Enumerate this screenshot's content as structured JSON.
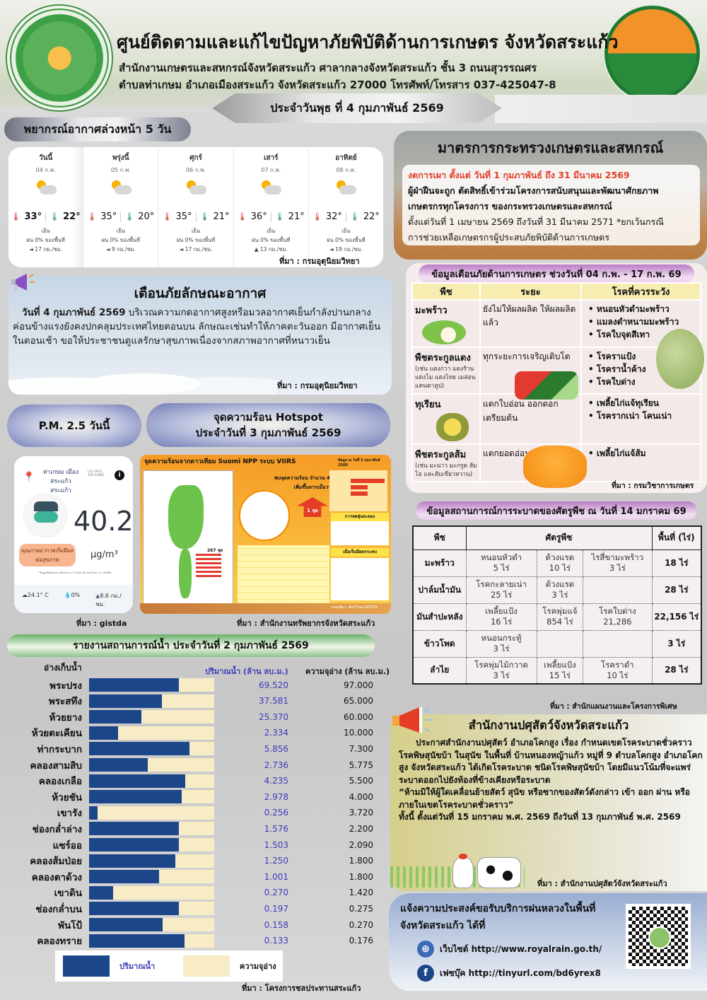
{
  "header": {
    "title": "ศูนย์ติดตามและแก้ไขปัญหาภัยพิบัติด้านการเกษตร จังหวัดสระแก้ว",
    "address_line1": "สำนักงานเกษตรและสหกรณ์จังหวัดสระแก้ว ศาลากลางจังหวัดสระแก้ว ชั้น 3 ถนนสุวรรณศร",
    "address_line2": "ตำบลท่าเกษม อำเภอเมืองสระแก้ว จังหวัดสระแก้ว 27000 โทรศัพท์/โทรสาร 037-425047-8",
    "date": "ประจำวันพุธ ที่ 4 กุมภาพันธ์ 2569",
    "logo_left_text": "กระทรวงเกษตรและสหกรณ์ · MINISTRY OF AGRICULTURE AND COOPERATIVES"
  },
  "forecast": {
    "title": "พยากรณ์อากาศล่วงหน้า 5 วัน",
    "days": [
      {
        "name": "วันนี้",
        "date": "04 ก.พ.",
        "high": "33°",
        "low": "22°",
        "cond": "เย็น",
        "rain": "ฝน 0% ของพื้นที่",
        "wind": "◄ 17 กม./ชม."
      },
      {
        "name": "พรุ่งนี้",
        "date": "05 ก.พ.",
        "high": "35°",
        "low": "20°",
        "cond": "เย็น",
        "rain": "ฝน 0% ของพื้นที่",
        "wind": "◄ 9 กม./ชม."
      },
      {
        "name": "ศุกร์",
        "date": "06 ก.พ.",
        "high": "35°",
        "low": "21°",
        "cond": "เย็น",
        "rain": "ฝน 0% ของพื้นที่",
        "wind": "◄ 17 กม./ชม."
      },
      {
        "name": "เสาร์",
        "date": "07 ก.พ.",
        "high": "36°",
        "low": "21°",
        "cond": "เย็น",
        "rain": "ฝน 0% ของพื้นที่",
        "wind": "▲ 13 กม./ชม."
      },
      {
        "name": "อาทิตย์",
        "date": "08 ก.พ.",
        "high": "32°",
        "low": "22°",
        "cond": "เย็น",
        "rain": "ฝน 0% ของพื้นที่",
        "wind": "◄ 19 กม./ชม."
      }
    ],
    "source": "ที่มา : กรมอุตุนิยมวิทยา"
  },
  "measures": {
    "title": "มาตรการกระทรวงเกษตรและสหกรณ์",
    "ban": "งดการเผา ตั้งแต่ วันที่ 1 กุมภาพันธ์ ถึง 31 มีนาคม 2569",
    "line1": "ผู้ฝ่าฝืนจะถูก ตัดสิทธิ์เข้าร่วมโครงการสนับสนุนและพัฒนาศักยภาพ",
    "line2": "เกษตรกรทุกโครงการ ของกระทรวงเกษตรและสหกรณ์",
    "line3": "ตั้งแต่วันที่ 1 เมษายน 2569 ถึงวันที่ 31 มีนาคม 2571 *ยกเว้นกรณี",
    "line4": "การช่วยเหลือเกษตรกรผู้ประสบภัยพิบัติด้านการเกษตร"
  },
  "weather_warning": {
    "title": "เตือนภัยลักษณะอากาศ",
    "date": "วันที่ 4 กุมภาพันธ์ 2569",
    "body": " บริเวณความกดอากาศสูงหรือมวลอากาศเย็นกำลังปานกลางค่อนข้างแรงยังคงปกคลุมประเทศไทยตอนบน ลักษณะเช่นทำให้ภาคตะวันออก มีอากาศเย็นในตอนเช้า ขอให้ประชาชนดูแลรักษาสุขภาพเนื่องจากสภาพอากาศที่หนาวเย็น",
    "source": "ที่มา : กรมอุตุนิยมวิทยา"
  },
  "crop_warning": {
    "title": "ข้อมูลเตือนภัยด้านการเกษตร ช่วงวันที่ 04 ก.พ. - 17 ก.พ. 69",
    "headers": [
      "พืช",
      "ระยะ",
      "โรคที่ควรระวัง"
    ],
    "rows": [
      {
        "crop": "มะพร้าว",
        "note": "",
        "stage": "ยังไม่ให้ผลผลิต ให้ผลผลิตแล้ว",
        "risks": [
          "หนอนหัวดำมะพร้าว",
          "แมลงดำหนามมะพร้าว",
          "โรคใบจุดสีเทา"
        ]
      },
      {
        "crop": "พืชตระกูลแตง",
        "note": "(เช่น แตงกวา แตงร้าน แตงโม แตงไทย เมล่อน แคนตาลูป)",
        "stage": "ทุกระยะการเจริญเติบโต",
        "risks": [
          "โรคราแป้ง",
          "โรคราน้ำค้าง",
          "โรคใบด่าง"
        ]
      },
      {
        "crop": "ทุเรียน",
        "note": "",
        "stage": "แตกใบอ่อน ออกดอก เตรียมต้น",
        "risks": [
          "เพลี้ยไก่แจ้ทุเรียน",
          "โรครากเน่า โคนเน่า"
        ]
      },
      {
        "crop": "พืชตระกูลส้ม",
        "note": "(เช่น มะนาว มะกรูด ส้มโอ และส้มเขียวหวาน)",
        "stage": "แตกยอดอ่อน",
        "risks": [
          "เพลี้ยไก่แจ้ส้ม"
        ]
      }
    ],
    "source": "ที่มา : กรมวิชาการเกษตร"
  },
  "pest": {
    "title": "ข้อมูลสถานการณ์การระบาดของศัตรูพืช ณ วันที่ 14 มกราคม 69",
    "headers": [
      "พืช",
      "ศัตรูพืช",
      "พื้นที่ (ไร่)"
    ],
    "rows": [
      {
        "crop": "มะพร้าว",
        "p1": "หนอนหัวดำ",
        "a1": "5 ไร่",
        "p2": "ด้วงแรด",
        "a2": "10 ไร่",
        "p3": "ไรสี่ขามะพร้าว",
        "a3": "3 ไร่",
        "total": "18 ไร่"
      },
      {
        "crop": "ปาล์มน้ำมัน",
        "p1": "โรคกะลายเน่า",
        "a1": "25 ไร่",
        "p2": "ด้วงแรด",
        "a2": "3 ไร่",
        "p3": "",
        "a3": "",
        "total": "28 ไร่"
      },
      {
        "crop": "มันสำปะหลัง",
        "p1": "เพลี้ยแป้ง",
        "a1": "16 ไร่",
        "p2": "โรคพุ่มแจ้",
        "a2": "854 ไร่",
        "p3": "โรคใบด่าง",
        "a3": "21,286",
        "total": "22,156 ไร่"
      },
      {
        "crop": "ข้าวโพด",
        "p1": "หนอนกระทู้",
        "a1": "3 ไร่",
        "p2": "",
        "a2": "",
        "p3": "",
        "a3": "",
        "total": "3 ไร่"
      },
      {
        "crop": "ลำไย",
        "p1": "โรคพุ่มไม้กวาด",
        "a1": "3 ไร่",
        "p2": "เพลี้ยแป้ง",
        "a2": "15 ไร่",
        "p3": "โรคราดำ",
        "a3": "10 ไร่",
        "total": "28 ไร่"
      }
    ],
    "source": "ที่มา : สำนักแผนงานและโครงการพิเศษ"
  },
  "pm25": {
    "title": "P.M. 2.5 วันนี้",
    "location": "ท่าเกษม เมือง สระแก้ว สระแก้ว",
    "coords": "(13.7971, 102.1366)",
    "value": "40.2",
    "unit": "µg/m³",
    "quality": "คุณภาพอากาศเริ่มมีผลต่อสุขภาพ",
    "note": "*ข้อมูลเบื้องต้นอย่างเป็นทางการ โปรดอ้างอิง Air4Thai และ AirBKK",
    "temp": "24.1° C",
    "humidity": "0%",
    "wind": "8.6 กม./ชม.",
    "source": "ที่มา : gistda"
  },
  "hotspot": {
    "title_line1": "จุดความร้อน Hotspot",
    "title_line2": "ประจำวันที่ 3 กุมภาพันธ์ 2569",
    "graphic_title": "จุดความร้อนจากดาวเทียม Suomi NPP ระบบ VIIRS",
    "graphic_date": "ข้อมูล ณ วันที่ 3 กุมภาพันธ์ 2569",
    "found": "พบจุดความร้อน จำนวน 4 จุด",
    "increase": "เพิ่มขึ้นจากเมื่อวาน",
    "delta": "1 จุด",
    "reduce_title": "การลดฝุ่นละออง",
    "effect_title": "เมื่อเริ่มมีผลกระทบ",
    "country_total": "267 จุด",
    "source_credit": "แหล่งที่มา: Air4Thai GISTDA",
    "source": "ที่มา : สำนักงานทรัพยากรจังหวัดสระแก้ว"
  },
  "water": {
    "title": "รายงานสถานการณ์น้ำ ประจำวันที่ 2 กุมภาพันธ์ 2569",
    "col_reservoir": "อ่างเก็บน้ำ",
    "col_volume": "ปริมาณน้ำ (ล้าน ลบ.ม.)",
    "col_capacity": "ความจุอ่าง (ล้าน ลบ.ม.)",
    "legend_volume": "ปริมาณน้ำ",
    "legend_capacity": "ความจุอ่าง",
    "source": "ที่มา : โครงการชลประทานสระแก้ว",
    "colors": {
      "volume": "#1b4689",
      "capacity": "#f8ecc6"
    }
  },
  "chart_data": {
    "type": "bar",
    "title": "รายงานสถานการณ์น้ำ ประจำวันที่ 2 กุมภาพันธ์ 2569",
    "xlabel": "ปริมาณน้ำ / ความจุอ่าง (ล้าน ลบ.ม.)",
    "ylabel": "อ่างเก็บน้ำ",
    "orientation": "horizontal",
    "stacked_percent": true,
    "legend": [
      "ปริมาณน้ำ",
      "ความจุอ่าง"
    ],
    "categories": [
      "พระปรง",
      "พระสทึง",
      "ห้วยยาง",
      "ห้วยตะเคียน",
      "ท่ากระบาก",
      "คลองสามสิบ",
      "คลองเกลือ",
      "ห้วยชัน",
      "เขารัง",
      "ช่องกล่ำล่าง",
      "แซร์ออ",
      "คลองส้มป่อย",
      "คลองตาด้วง",
      "เขาดิน",
      "ช่องกล่ำบน",
      "พันโป้",
      "คลองทราย"
    ],
    "series": [
      {
        "name": "ปริมาณน้ำ",
        "values": [
          "69.520",
          "37.581",
          "25.370",
          "2.334",
          "5.856",
          "2.736",
          "4.235",
          "2.978",
          "0.256",
          "1.576",
          "1.503",
          "1.250",
          "1.001",
          "0.270",
          "0.197",
          "0.158",
          "0.133"
        ]
      },
      {
        "name": "ความจุอ่าง",
        "values": [
          "97.000",
          "65.000",
          "60.000",
          "10.000",
          "7.300",
          "5.775",
          "5.500",
          "4.000",
          "3.720",
          "2.200",
          "2.090",
          "1.800",
          "1.800",
          "1.420",
          "0.275",
          "0.270",
          "0.176"
        ]
      }
    ],
    "percent": [
      72,
      58,
      42,
      23,
      80,
      47,
      77,
      74,
      7,
      72,
      72,
      69,
      56,
      19,
      72,
      59,
      76
    ],
    "grid": false
  },
  "livestock": {
    "title": "สำนักงานปศุสัตว์จังหวัดสระแก้ว",
    "p1": "ประกาศสำนักงานปศุสัตว์ อำเภอโคกสูง เรื่อง กำหนดเขตโรคระบาดชั่วคราว โรคพิษสุนัขบ้า ในสุนัข ในพื้นที่ บ้านหนองหญ้าแก้ว หมู่ที่ 9 ตำบลโคกสูง อำเภอโคกสูง จังหวัดสระแก้ว ได้เกิดโรคระบาด ชนิดโรคพิษสุนัขบ้า โดยมีแนวโน้มที่จะแพร่ระบาดออกไปยังท้องที่ข้างเคียงหรือระบาด",
    "p2": "“ห้ามมิให้ผู้ใดเคลื่อนย้ายสัตว์ สุนัข หรือซากของสัตว์ดังกล่าว เข้า ออก ผ่าน หรือภายในเขตโรคระบาดชั่วคราว”",
    "p3": "ทั้งนี้ ตั้งแต่วันที่ 15 มกราคม พ.ศ. 2569 ถึงวันที่ 13 กุมภาพันธ์ พ.ศ. 2569",
    "source": "ที่มา : สำนักงานปศุสัตว์จังหวัดสระแก้ว"
  },
  "rain": {
    "title_line1": "แจ้งความประสงค์ขอรับบริการฝนหลวงในพื้นที่",
    "title_line2": "จังหวัดสระแก้ว ได้ที่",
    "website": "เว็บไซต์ http://www.royalrain.go.th/",
    "facebook": "เฟซบุ๊ค http://tinyurl.com/bd6yrex8"
  }
}
